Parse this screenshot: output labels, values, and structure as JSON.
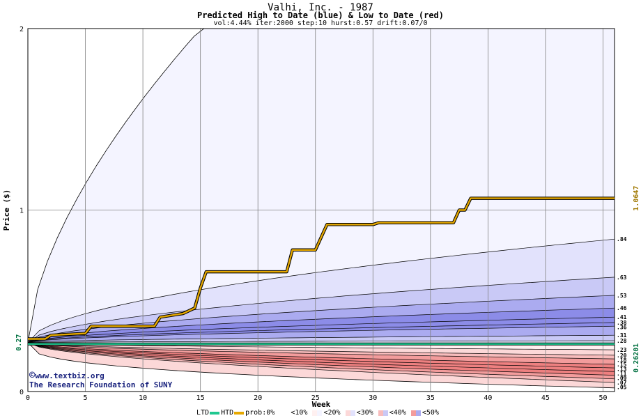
{
  "title": "Valhi, Inc. - 1987",
  "subtitle": "Predicted High to Date (blue) &  Low to Date (red)",
  "params": "vol:4.44% iter:2000 step:10 hurst:0.57 drift:0.07/0",
  "credit": {
    "symbol": "©",
    "line1": "www.textbiz.org",
    "line2": "The Research Foundation of SUNY"
  },
  "legend": {
    "ltd": "LTD",
    "htd": "HTD",
    "prob": "prob:0%",
    "bands": [
      "<10%",
      "<20%",
      "<30%",
      "<40%",
      "<50%"
    ]
  },
  "colors": {
    "htd": "#e6a800",
    "ltd": "#20c890",
    "grid": "#808080",
    "blue_bands": [
      "#f4f4ff",
      "#e2e2fc",
      "#c9c9f6",
      "#ababf0",
      "#8c8ce8"
    ],
    "red_bands": [
      "#fff0f0",
      "#fcd8d8",
      "#f8bcbc",
      "#f39c9c",
      "#ee8080"
    ]
  },
  "chart_data": {
    "type": "area",
    "xlabel": "Week",
    "ylabel": "Price ($)",
    "xlim": [
      0,
      51
    ],
    "ylim": [
      0,
      2
    ],
    "xticks": [
      "0",
      "5",
      "10",
      "15",
      "20",
      "25",
      "30",
      "35",
      "40",
      "45",
      "50"
    ],
    "yticks": [
      "0",
      "1",
      "2"
    ],
    "start_price": 0.27,
    "start_price_label": "0.27",
    "ltd_value_label": "0.26201",
    "htd_value_label": "1.0647",
    "htd_steps": [
      [
        0,
        0.29
      ],
      [
        1.5,
        0.29
      ],
      [
        2,
        0.31
      ],
      [
        5,
        0.32
      ],
      [
        5.5,
        0.36
      ],
      [
        11,
        0.36
      ],
      [
        11.5,
        0.41
      ],
      [
        13.5,
        0.43
      ],
      [
        14.5,
        0.46
      ],
      [
        15,
        0.57
      ],
      [
        15.5,
        0.66
      ],
      [
        22.5,
        0.66
      ],
      [
        23,
        0.78
      ],
      [
        25,
        0.78
      ],
      [
        26,
        0.92
      ],
      [
        30,
        0.92
      ],
      [
        30.5,
        0.93
      ],
      [
        37,
        0.93
      ],
      [
        37.5,
        1.0
      ],
      [
        38,
        1.0
      ],
      [
        38.5,
        1.0647
      ],
      [
        51,
        1.0647
      ]
    ],
    "ltd_value": 0.26201,
    "blue_quantiles": [
      {
        "label": ".84",
        "end": 0.84
      },
      {
        "label": ".63",
        "end": 0.63
      },
      {
        "label": ".53",
        "end": 0.53
      },
      {
        "label": ".46",
        "end": 0.46
      },
      {
        "label": ".41",
        "end": 0.41
      },
      {
        "label": ".38",
        "end": 0.38
      },
      {
        "label": ".36",
        "end": 0.36
      },
      {
        "label": ".31",
        "end": 0.31
      },
      {
        "label": ".28",
        "end": 0.28
      }
    ],
    "red_quantiles": [
      {
        "label": ".23",
        "end": 0.23
      },
      {
        "label": ".20",
        "end": 0.2
      },
      {
        "label": ".18",
        "end": 0.18
      },
      {
        "label": ".15",
        "end": 0.15
      },
      {
        "label": ".13",
        "end": 0.13
      },
      {
        "label": ".11",
        "end": 0.11
      },
      {
        "label": ".09",
        "end": 0.09
      },
      {
        "label": ".07",
        "end": 0.07
      },
      {
        "label": ".05",
        "end": 0.05
      }
    ],
    "outer_upper_label": "",
    "outer_upper": 2.0,
    "outer_lower": 0.02
  }
}
